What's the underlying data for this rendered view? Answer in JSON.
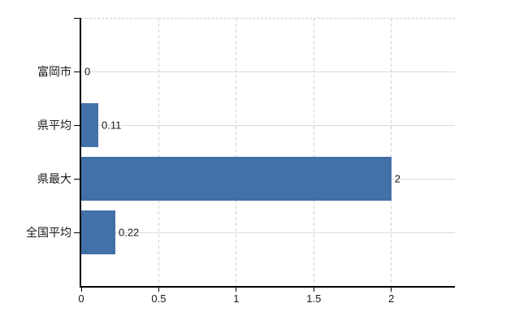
{
  "chart_data": {
    "type": "bar",
    "orientation": "horizontal",
    "title": "",
    "xlabel": "",
    "ylabel": "",
    "categories": [
      "富岡市",
      "県平均",
      "県最大",
      "全国平均"
    ],
    "values": [
      0,
      0.11,
      2,
      0.22
    ],
    "value_labels": [
      "0",
      "0.11",
      "2",
      "0.22"
    ],
    "x_ticks": [
      0,
      0.5,
      1,
      1.5,
      2
    ],
    "x_tick_labels": [
      "0",
      "0.5",
      "1",
      "1.5",
      "2"
    ],
    "xlim": [
      0,
      2.41
    ],
    "grid": true,
    "legend": false,
    "colors": {
      "bar": "#4270a8",
      "axis": "#000000",
      "grid_horizontal": "#d6dcd6",
      "grid_vertical": "#d2d2d2",
      "plot_border_top": "#cfcfcf",
      "text": "#1a1a1a",
      "background": "#ffffff"
    }
  }
}
